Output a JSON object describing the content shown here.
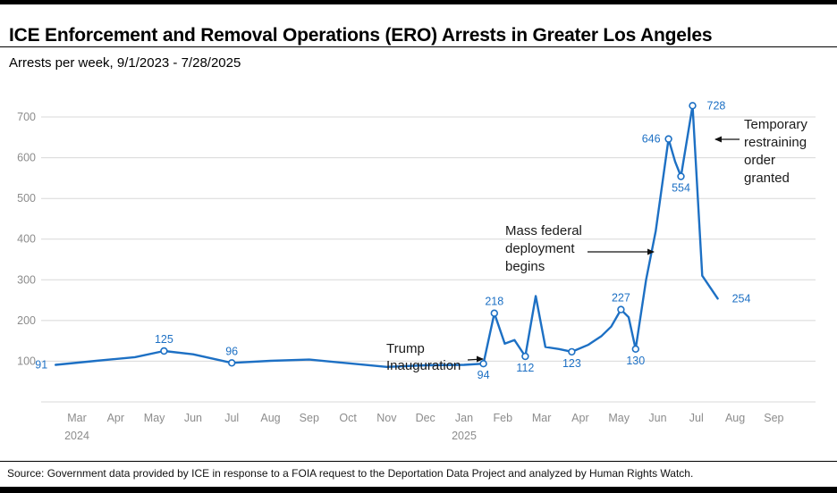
{
  "footer": {
    "source": "Source: Government data provided by ICE in response to a FOIA request to the Deportation Data Project and analyzed by Human Rights Watch."
  },
  "chart_data": {
    "type": "line",
    "title": "ICE Enforcement and Removal Operations (ERO) Arrests in Greater Los Angeles",
    "subtitle": "Arrests per week, 9/1/2023 - 7/28/2025",
    "ylabel": "Arrests per week",
    "ylim": [
      0,
      750
    ],
    "grid": "horizontal",
    "legend": "none",
    "colors": {
      "line": "#1d70c4",
      "grid": "#d8d8d8",
      "axis_text": "#8c8c8c",
      "label_text": "#1d70c4",
      "annotation_text": "#1a1a1a",
      "arrow": "#111111"
    },
    "y_gridlines": [
      0,
      100,
      200,
      300,
      400,
      500,
      600,
      700
    ],
    "x_ticks": [
      {
        "m": "Mar",
        "y": "2024"
      },
      {
        "m": "Apr"
      },
      {
        "m": "May"
      },
      {
        "m": "Jun"
      },
      {
        "m": "Jul"
      },
      {
        "m": "Aug"
      },
      {
        "m": "Sep"
      },
      {
        "m": "Oct"
      },
      {
        "m": "Nov"
      },
      {
        "m": "Dec"
      },
      {
        "m": "Jan",
        "y": "2025"
      },
      {
        "m": "Feb"
      },
      {
        "m": "Mar"
      },
      {
        "m": "Apr"
      },
      {
        "m": "May"
      },
      {
        "m": "Jun"
      },
      {
        "m": "Jul"
      },
      {
        "m": "Aug"
      },
      {
        "m": "Sep"
      }
    ],
    "points": [
      [
        -0.55,
        91
      ],
      [
        0.5,
        101
      ],
      [
        1.5,
        110
      ],
      [
        2.25,
        125
      ],
      [
        3.0,
        117
      ],
      [
        4.0,
        96
      ],
      [
        5.0,
        101
      ],
      [
        6.0,
        104
      ],
      [
        7.0,
        95
      ],
      [
        8.0,
        86
      ],
      [
        9.0,
        90
      ],
      [
        10.0,
        91
      ],
      [
        10.5,
        94
      ],
      [
        10.78,
        218
      ],
      [
        11.05,
        143
      ],
      [
        11.3,
        152
      ],
      [
        11.58,
        112
      ],
      [
        11.85,
        260
      ],
      [
        12.1,
        135
      ],
      [
        12.45,
        130
      ],
      [
        12.78,
        123
      ],
      [
        13.2,
        140
      ],
      [
        13.55,
        162
      ],
      [
        13.8,
        185
      ],
      [
        14.05,
        227
      ],
      [
        14.25,
        208
      ],
      [
        14.43,
        130
      ],
      [
        14.7,
        300
      ],
      [
        14.95,
        420
      ],
      [
        15.28,
        646
      ],
      [
        15.45,
        590
      ],
      [
        15.6,
        554
      ],
      [
        15.9,
        728
      ],
      [
        16.15,
        310
      ],
      [
        16.55,
        254
      ]
    ],
    "labels": [
      {
        "x": -0.55,
        "v": 91,
        "t": "91",
        "pos": "left",
        "marker": false
      },
      {
        "x": 2.25,
        "v": 125,
        "t": "125",
        "pos": "above",
        "marker": true
      },
      {
        "x": 4.0,
        "v": 96,
        "t": "96",
        "pos": "above",
        "marker": true
      },
      {
        "x": 10.5,
        "v": 94,
        "t": "94",
        "pos": "below",
        "marker": true
      },
      {
        "x": 10.78,
        "v": 218,
        "t": "218",
        "pos": "above",
        "marker": true
      },
      {
        "x": 11.58,
        "v": 112,
        "t": "112",
        "pos": "below",
        "marker": true
      },
      {
        "x": 12.78,
        "v": 123,
        "t": "123",
        "pos": "below",
        "marker": true
      },
      {
        "x": 14.05,
        "v": 227,
        "t": "227",
        "pos": "above",
        "marker": true
      },
      {
        "x": 14.43,
        "v": 130,
        "t": "130",
        "pos": "below",
        "marker": true
      },
      {
        "x": 15.28,
        "v": 646,
        "t": "646",
        "pos": "left",
        "marker": true
      },
      {
        "x": 15.6,
        "v": 554,
        "t": "554",
        "pos": "below",
        "marker": true
      },
      {
        "x": 15.9,
        "v": 728,
        "t": "728",
        "pos": "right",
        "marker": true
      },
      {
        "x": 16.55,
        "v": 254,
        "t": "254",
        "pos": "right",
        "marker": false
      }
    ],
    "annotations": [
      {
        "lines": [
          "Trump",
          "Inauguration"
        ],
        "x": 432,
        "y": 305,
        "lh": 19,
        "arrow": [
          523,
          313,
          540,
          312
        ],
        "head": "right"
      },
      {
        "lines": [
          "Mass federal",
          "deployment",
          "begins"
        ],
        "x": 565,
        "y": 173,
        "lh": 20,
        "arrow": [
          657,
          192,
          731,
          192
        ],
        "head": "right"
      },
      {
        "lines": [
          "Temporary",
          "restraining",
          "order",
          "granted"
        ],
        "x": 832,
        "y": 54,
        "lh": 20,
        "arrow": [
          827,
          66,
          800,
          66
        ],
        "head": "left"
      }
    ]
  }
}
